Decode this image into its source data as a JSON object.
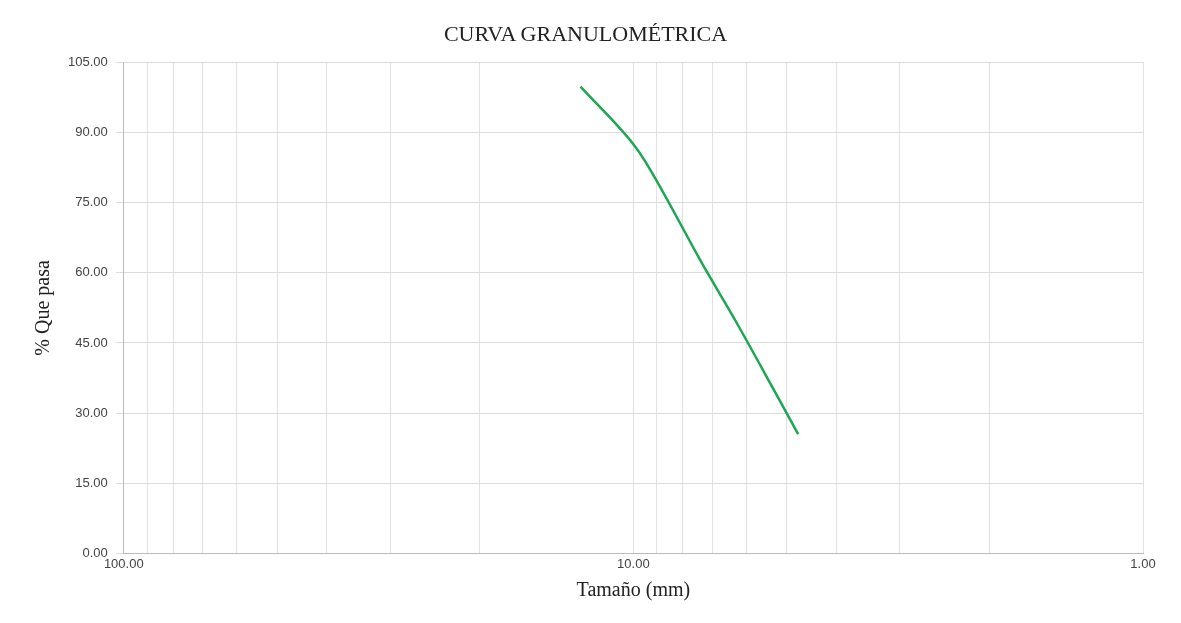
{
  "chart_data": {
    "type": "line",
    "title": "CURVA GRANULOMÉTRICA",
    "xlabel": "Tamaño (mm)",
    "ylabel": "% Que pasa",
    "x": [
      12.7,
      10,
      9.5,
      7.2,
      6.3,
      4.75
    ],
    "series": [
      {
        "color": "#1ea653",
        "values": [
          99.8,
          87.5,
          84,
          60.5,
          49.7,
          25.5
        ]
      }
    ],
    "log": "x",
    "xlim": [
      100,
      1
    ],
    "xticks": [
      {
        "value": 100,
        "label": "100.00"
      },
      {
        "value": 90,
        "label": null
      },
      {
        "value": 80,
        "label": null
      },
      {
        "value": 70,
        "label": null
      },
      {
        "value": 60,
        "label": null
      },
      {
        "value": 50,
        "label": null
      },
      {
        "value": 40,
        "label": null
      },
      {
        "value": 30,
        "label": null
      },
      {
        "value": 20,
        "label": null
      },
      {
        "value": 10,
        "label": "10.00"
      },
      {
        "value": 9,
        "label": null
      },
      {
        "value": 8,
        "label": null
      },
      {
        "value": 7,
        "label": null
      },
      {
        "value": 6,
        "label": null
      },
      {
        "value": 5,
        "label": null
      },
      {
        "value": 4,
        "label": null
      },
      {
        "value": 3,
        "label": null
      },
      {
        "value": 2,
        "label": null
      },
      {
        "value": 1,
        "label": "1.00"
      }
    ],
    "ylim": [
      0,
      105
    ],
    "yticks": [
      {
        "value": 0,
        "label": "0.00"
      },
      {
        "value": 15,
        "label": "15.00"
      },
      {
        "value": 30,
        "label": "30.00"
      },
      {
        "value": 45,
        "label": "45.00"
      },
      {
        "value": 60,
        "label": "60.00"
      },
      {
        "value": 75,
        "label": "75.00"
      },
      {
        "value": 90,
        "label": "90.00"
      },
      {
        "value": 105,
        "label": "105.00"
      }
    ],
    "grid": true,
    "legend": false,
    "marker": "none",
    "line_style": "solid"
  }
}
